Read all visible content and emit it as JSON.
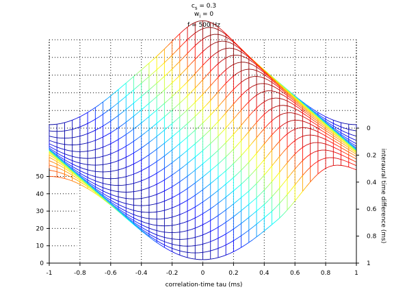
{
  "chart_data": {
    "type": "surface",
    "title_lines": [
      {
        "main": "c",
        "sub": "s",
        "rest": " = 0.3"
      },
      {
        "main": "w",
        "sub": "i",
        "rest": " = 0"
      },
      {
        "main": "f = 500 Hz",
        "sub": "",
        "rest": ""
      }
    ],
    "xlabel": "correlation-time tau (ms)",
    "ylabel": "interaural time difference (ms)",
    "zlabel": "",
    "x_ticks": [
      "-1",
      "-0.8",
      "-0.6",
      "-0.4",
      "-0.2",
      "0",
      "0.2",
      "0.4",
      "0.6",
      "0.8",
      "1"
    ],
    "y_ticks": [
      "0",
      "0.2",
      "0.4",
      "0.6",
      "0.8",
      "1"
    ],
    "z_ticks": [
      "0",
      "10",
      "20",
      "30",
      "40",
      "50"
    ],
    "xlim": [
      -1,
      1
    ],
    "ylim": [
      0,
      1
    ],
    "zlim": [
      0,
      50
    ],
    "grid": true,
    "colormap": "jet",
    "mesh": {
      "frequency_hz": 500,
      "tau_step_ms": 0.05,
      "itd_step_ms": 0.05,
      "baseline": 26,
      "amplitude": 24,
      "peak_apex": 62,
      "peak_width_ms": 0.3
    }
  }
}
